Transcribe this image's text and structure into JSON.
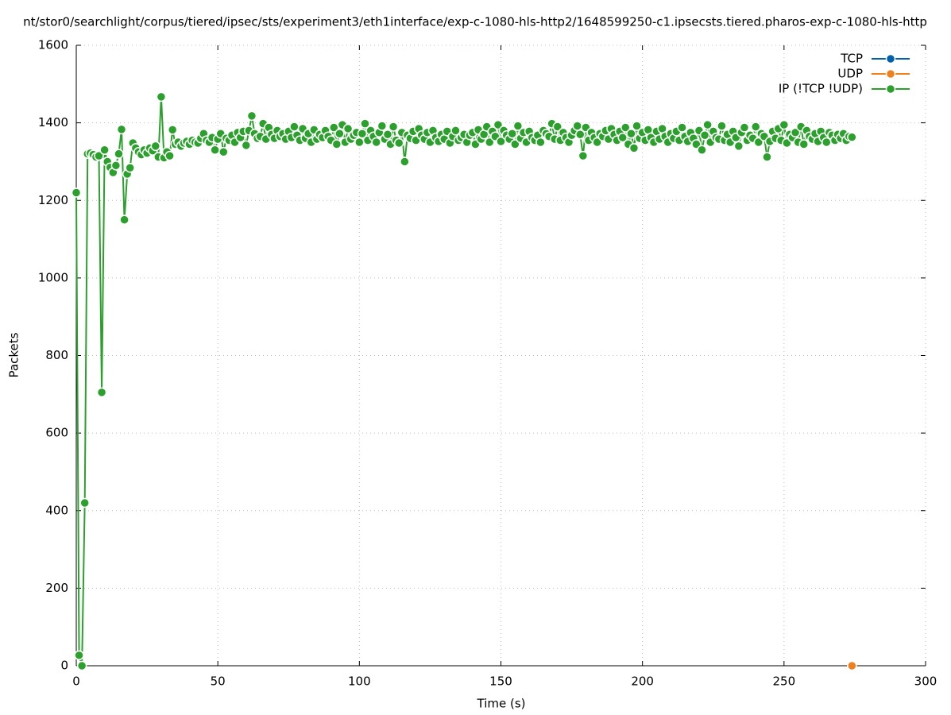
{
  "chart_data": {
    "type": "line",
    "title": "nt/stor0/searchlight/corpus/tiered/ipsec/sts/experiment3/eth1interface/exp-c-1080-hls-http2/1648599250-c1.ipsecsts.tiered.pharos-exp-c-1080-hls-http",
    "x_label": "Time (s)",
    "y_label": "Packets",
    "xlim": [
      0,
      300
    ],
    "xticks": [
      0,
      50,
      100,
      150,
      200,
      250,
      300
    ],
    "ylim": [
      0,
      1600
    ],
    "yticks": [
      0,
      200,
      400,
      600,
      800,
      1000,
      1200,
      1400,
      1600
    ],
    "grid": true,
    "legend": "top-right",
    "series": [
      {
        "name": "TCP",
        "color": "#0060ad",
        "x": [],
        "values": []
      },
      {
        "name": "UDP",
        "color": "#f07f1d",
        "x": [
          274
        ],
        "values": [
          0
        ]
      },
      {
        "name": "IP (!TCP  !UDP)",
        "color": "#2ca02c",
        "x": [
          0,
          1,
          2,
          3,
          4,
          5,
          6,
          7,
          8,
          9,
          10,
          11,
          12,
          13,
          14,
          15,
          16,
          17,
          18,
          19,
          20,
          21,
          22,
          23,
          24,
          25,
          26,
          27,
          28,
          29,
          30,
          31,
          32,
          33,
          34,
          35,
          36,
          37,
          38,
          39,
          40,
          41,
          42,
          43,
          44,
          45,
          46,
          47,
          48,
          49,
          50,
          51,
          52,
          53,
          54,
          55,
          56,
          57,
          58,
          59,
          60,
          61,
          62,
          63,
          64,
          65,
          66,
          67,
          68,
          69,
          70,
          71,
          72,
          73,
          74,
          75,
          76,
          77,
          78,
          79,
          80,
          81,
          82,
          83,
          84,
          85,
          86,
          87,
          88,
          89,
          90,
          91,
          92,
          93,
          94,
          95,
          96,
          97,
          98,
          99,
          100,
          101,
          102,
          103,
          104,
          105,
          106,
          107,
          108,
          109,
          110,
          111,
          112,
          113,
          114,
          115,
          116,
          117,
          118,
          119,
          120,
          121,
          122,
          123,
          124,
          125,
          126,
          127,
          128,
          129,
          130,
          131,
          132,
          133,
          134,
          135,
          136,
          137,
          138,
          139,
          140,
          141,
          142,
          143,
          144,
          145,
          146,
          147,
          148,
          149,
          150,
          151,
          152,
          153,
          154,
          155,
          156,
          157,
          158,
          159,
          160,
          161,
          162,
          163,
          164,
          165,
          166,
          167,
          168,
          169,
          170,
          171,
          172,
          173,
          174,
          175,
          176,
          177,
          178,
          179,
          180,
          181,
          182,
          183,
          184,
          185,
          186,
          187,
          188,
          189,
          190,
          191,
          192,
          193,
          194,
          195,
          196,
          197,
          198,
          199,
          200,
          201,
          202,
          203,
          204,
          205,
          206,
          207,
          208,
          209,
          210,
          211,
          212,
          213,
          214,
          215,
          216,
          217,
          218,
          219,
          220,
          221,
          222,
          223,
          224,
          225,
          226,
          227,
          228,
          229,
          230,
          231,
          232,
          233,
          234,
          235,
          236,
          237,
          238,
          239,
          240,
          241,
          242,
          243,
          244,
          245,
          246,
          247,
          248,
          249,
          250,
          251,
          252,
          253,
          254,
          255,
          256,
          257,
          258,
          259,
          260,
          261,
          262,
          263,
          264,
          265,
          266,
          267,
          268,
          269,
          270,
          271,
          272,
          273,
          274
        ],
        "values": [
          1220,
          27,
          0,
          420,
          1320,
          1322,
          1318,
          1312,
          1315,
          705,
          1330,
          1300,
          1285,
          1272,
          1290,
          1320,
          1383,
          1150,
          1268,
          1284,
          1348,
          1335,
          1325,
          1318,
          1330,
          1322,
          1335,
          1328,
          1340,
          1312,
          1467,
          1310,
          1325,
          1315,
          1382,
          1345,
          1350,
          1340,
          1348,
          1352,
          1345,
          1355,
          1350,
          1348,
          1360,
          1372,
          1355,
          1350,
          1362,
          1330,
          1358,
          1372,
          1325,
          1360,
          1355,
          1368,
          1350,
          1375,
          1362,
          1378,
          1342,
          1380,
          1418,
          1372,
          1360,
          1365,
          1398,
          1358,
          1388,
          1370,
          1360,
          1380,
          1365,
          1372,
          1358,
          1378,
          1362,
          1390,
          1368,
          1355,
          1385,
          1360,
          1372,
          1350,
          1382,
          1358,
          1370,
          1362,
          1380,
          1365,
          1355,
          1388,
          1345,
          1372,
          1395,
          1350,
          1385,
          1358,
          1368,
          1375,
          1350,
          1372,
          1398,
          1355,
          1380,
          1365,
          1350,
          1375,
          1392,
          1358,
          1370,
          1345,
          1390,
          1355,
          1348,
          1375,
          1300,
          1368,
          1360,
          1378,
          1355,
          1385,
          1368,
          1358,
          1375,
          1350,
          1380,
          1362,
          1352,
          1370,
          1358,
          1378,
          1348,
          1365,
          1380,
          1355,
          1362,
          1370,
          1350,
          1368,
          1375,
          1345,
          1382,
          1358,
          1370,
          1390,
          1350,
          1378,
          1365,
          1395,
          1352,
          1380,
          1368,
          1358,
          1372,
          1345,
          1392,
          1360,
          1375,
          1350,
          1378,
          1362,
          1355,
          1368,
          1350,
          1380,
          1372,
          1365,
          1398,
          1358,
          1390,
          1355,
          1375,
          1362,
          1350,
          1368,
          1380,
          1392,
          1370,
          1315,
          1388,
          1355,
          1375,
          1362,
          1350,
          1372,
          1365,
          1380,
          1358,
          1385,
          1370,
          1355,
          1378,
          1362,
          1388,
          1345,
          1372,
          1335,
          1392,
          1360,
          1375,
          1355,
          1382,
          1362,
          1350,
          1378,
          1358,
          1385,
          1365,
          1350,
          1372,
          1360,
          1378,
          1355,
          1388,
          1365,
          1352,
          1375,
          1360,
          1345,
          1380,
          1330,
          1368,
          1395,
          1350,
          1378,
          1362,
          1358,
          1392,
          1355,
          1370,
          1350,
          1378,
          1362,
          1340,
          1375,
          1388,
          1355,
          1368,
          1360,
          1390,
          1350,
          1372,
          1365,
          1312,
          1352,
          1378,
          1360,
          1385,
          1355,
          1395,
          1348,
          1370,
          1362,
          1375,
          1350,
          1390,
          1345,
          1380,
          1365,
          1358,
          1372,
          1352,
          1378,
          1362,
          1350,
          1375,
          1368,
          1355,
          1370,
          1360,
          1372,
          1355,
          1365,
          1363
        ]
      }
    ]
  }
}
